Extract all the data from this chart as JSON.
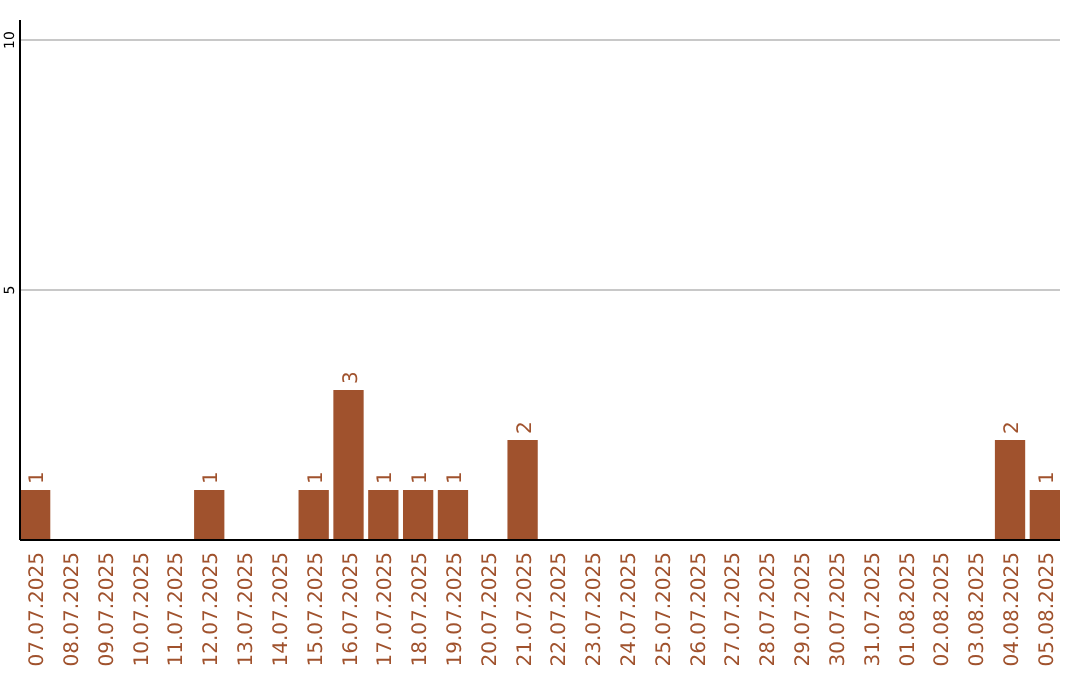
{
  "chart_data": {
    "type": "bar",
    "categories": [
      "07.07.2025",
      "08.07.2025",
      "09.07.2025",
      "10.07.2025",
      "11.07.2025",
      "12.07.2025",
      "13.07.2025",
      "14.07.2025",
      "15.07.2025",
      "16.07.2025",
      "17.07.2025",
      "18.07.2025",
      "19.07.2025",
      "20.07.2025",
      "21.07.2025",
      "22.07.2025",
      "23.07.2025",
      "24.07.2025",
      "25.07.2025",
      "26.07.2025",
      "27.07.2025",
      "28.07.2025",
      "29.07.2025",
      "30.07.2025",
      "31.07.2025",
      "01.08.2025",
      "02.08.2025",
      "03.08.2025",
      "04.08.2025",
      "05.08.2025"
    ],
    "values": [
      1,
      0,
      0,
      0,
      0,
      1,
      0,
      0,
      1,
      3,
      1,
      1,
      1,
      0,
      2,
      0,
      0,
      0,
      0,
      0,
      0,
      0,
      0,
      0,
      0,
      0,
      0,
      0,
      2,
      1
    ],
    "value_labels": [
      "1",
      null,
      null,
      null,
      null,
      "1",
      null,
      null,
      "1",
      "3",
      "1",
      "1",
      "1",
      null,
      "2",
      null,
      null,
      null,
      null,
      null,
      null,
      null,
      null,
      null,
      null,
      null,
      null,
      null,
      "2",
      "1"
    ],
    "color": "#a0522d",
    "ylim": [
      0,
      10
    ],
    "yticks": [
      5,
      10
    ],
    "grid": "y"
  }
}
